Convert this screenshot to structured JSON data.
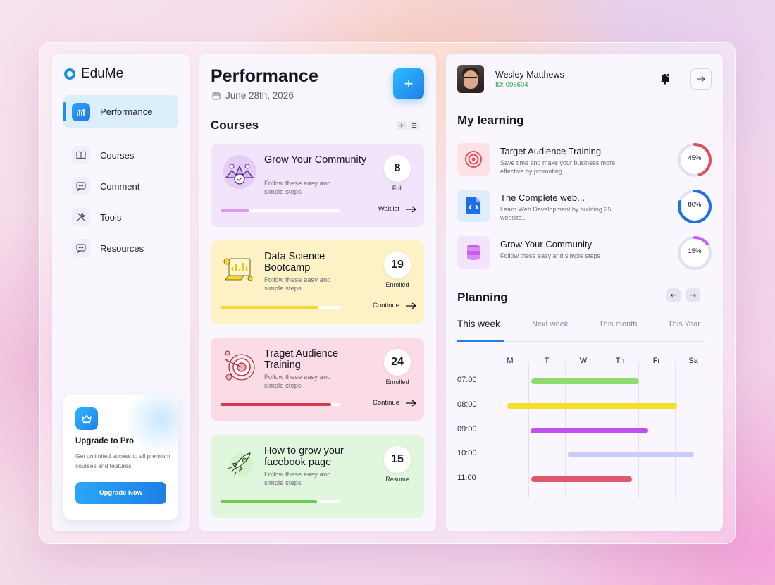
{
  "brand": {
    "name": "EduMe",
    "accent": "#1e8fe8"
  },
  "sidebar": {
    "items": [
      {
        "label": "Performance",
        "icon": "chart-icon",
        "active": true
      },
      {
        "label": "Courses",
        "icon": "book-icon"
      },
      {
        "label": "Comment",
        "icon": "comment-icon"
      },
      {
        "label": "Tools",
        "icon": "tools-icon"
      },
      {
        "label": "Resources",
        "icon": "resources-icon"
      }
    ],
    "upgrade": {
      "title": "Upgrade to Pro",
      "description": "Get unlimited access to all premium courses and features",
      "button": "Upgrade Now"
    }
  },
  "main": {
    "title": "Performance",
    "date": "June 28th, 2026",
    "courses_heading": "Courses",
    "courses": [
      {
        "name": "Grow Your Community",
        "description": "Follow these easy and simple steps",
        "count": "8",
        "status": "Full",
        "action": "Waitlist",
        "progress": 0.24,
        "bg": "#f1e4fb",
        "fill": "#d79cf0"
      },
      {
        "name": "Data Science Bootcamp",
        "description": "Follow these easy and simple steps",
        "count": "19",
        "status": "Enrolled",
        "action": "Continue",
        "progress": 0.82,
        "bg": "#fdf1c6",
        "fill": "#f6d92e"
      },
      {
        "name": "Traget Audience Training",
        "description": "Follow these easy and simple steps",
        "count": "24",
        "status": "Enrolled",
        "action": "Continue",
        "progress": 0.93,
        "bg": "#fbdce6",
        "fill": "#d63a48"
      },
      {
        "name": "How to grow your facebook page",
        "description": "Follow these easy and simple steps",
        "count": "15",
        "status": "Resume",
        "action": "",
        "progress": 0.81,
        "bg": "#e1f7dd",
        "fill": "#6cc95a"
      }
    ]
  },
  "user": {
    "name": "Wesley Matthews",
    "id": "ID: 008604"
  },
  "learning": {
    "heading": "My learning",
    "items": [
      {
        "title": "Target Audience Training",
        "description": "Save time and make your business more effective by promoting...",
        "percent": "45%",
        "value": 0.45,
        "color": "#e2505f",
        "icon": "target-icon",
        "iconBg": "#fde3e7"
      },
      {
        "title": "The Complete web...",
        "description": "Learn Web Development by building 25 website...",
        "percent": "80%",
        "value": 0.8,
        "color": "#1e6fe6",
        "icon": "code-file-icon",
        "iconBg": "#dfecfc"
      },
      {
        "title": "Grow Your Community",
        "description": "Follow these easy and simple steps",
        "percent": "15%",
        "value": 0.15,
        "color": "#c85ef0",
        "icon": "database-icon",
        "iconBg": "#f2e4fb"
      }
    ]
  },
  "planning": {
    "heading": "Planning",
    "tabs": [
      "This week",
      "Next week",
      "This month",
      "This Year"
    ],
    "days": [
      "M",
      "T",
      "W",
      "Th",
      "Fr",
      "Sa"
    ],
    "times": [
      "07:00",
      "08:00",
      "09:00",
      "10:00",
      "11:00"
    ],
    "bars": [
      {
        "start": 1.0,
        "end": 3.95,
        "color": "#8fdc6e"
      },
      {
        "start": 0.35,
        "end": 4.98,
        "color": "#f4df2b"
      },
      {
        "start": 0.98,
        "end": 4.2,
        "color": "#c150ef"
      },
      {
        "start": 2.0,
        "end": 5.45,
        "color": "#c7cdf7"
      },
      {
        "start": 1.0,
        "end": 3.75,
        "color": "#e0586a"
      }
    ]
  }
}
